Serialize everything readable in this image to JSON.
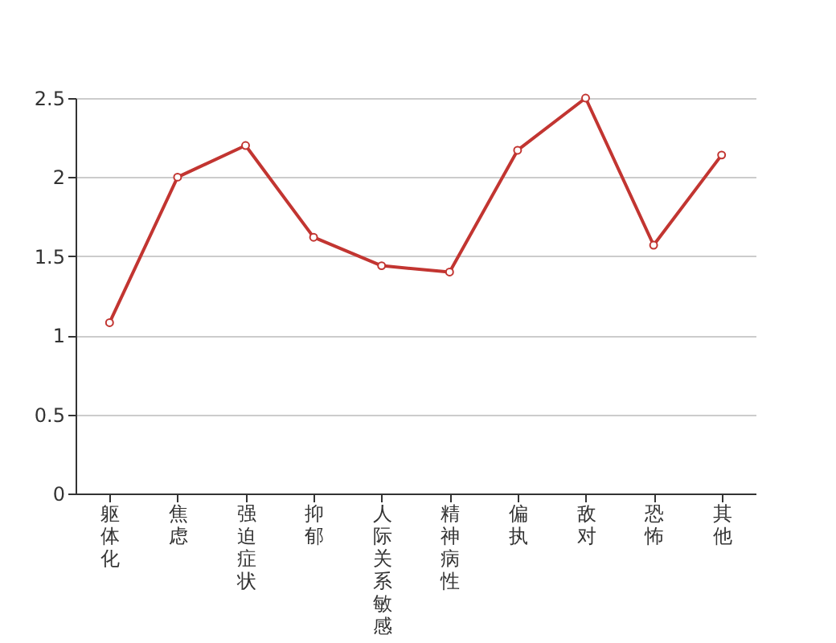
{
  "chart_data": {
    "type": "line",
    "categories": [
      "躯体化",
      "焦虑",
      "强迫症状",
      "抑郁",
      "人际关系敏感",
      "精神病性",
      "偏执",
      "敌对",
      "恐怖",
      "其他"
    ],
    "series": [
      {
        "color": "#c23531",
        "values": [
          1.08,
          2.0,
          2.2,
          1.62,
          1.44,
          1.4,
          2.17,
          2.5,
          1.57,
          2.14
        ]
      }
    ],
    "ylim": [
      0,
      2.5
    ],
    "yticks": [
      0,
      0.5,
      1,
      1.5,
      2,
      2.5
    ],
    "grid": "y",
    "marker": "circle",
    "line_style": "solid"
  }
}
